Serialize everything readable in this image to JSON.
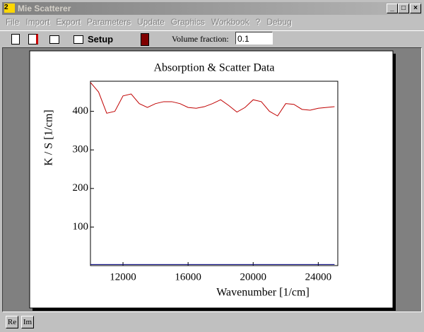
{
  "window": {
    "title": "Mie Scatterer"
  },
  "menu": [
    "File",
    "Import",
    "Export",
    "Parameters",
    "Update",
    "Graphics",
    "Workbook",
    "?",
    "Debug"
  ],
  "toolbar": {
    "setup": "Setup",
    "volume_label": "Volume fraction:",
    "volume_value": "0.1"
  },
  "status": {
    "buttons": [
      "Re",
      "Im"
    ]
  },
  "chart_data": {
    "type": "line",
    "title": "Absorption & Scatter Data",
    "x_label": "Wavenumber [1/cm]",
    "y_label": "K / S [1/cm]",
    "x": [
      10000,
      10500,
      11000,
      11500,
      12000,
      12500,
      13000,
      13500,
      14000,
      14500,
      15000,
      15500,
      16000,
      16500,
      17000,
      17500,
      18000,
      18500,
      19000,
      19500,
      20000,
      20500,
      21000,
      21500,
      22000,
      22500,
      23000,
      23500,
      24000,
      24500,
      25000
    ],
    "series": [
      {
        "color": "#c00000",
        "values": [
          475,
          450,
          395,
          400,
          440,
          445,
          420,
          410,
          420,
          425,
          425,
          420,
          410,
          408,
          412,
          420,
          430,
          415,
          398,
          410,
          430,
          425,
          400,
          388,
          420,
          418,
          405,
          403,
          408,
          410,
          412
        ]
      },
      {
        "color": "#000080",
        "values": [
          3,
          3,
          3,
          3,
          3,
          3,
          3,
          3,
          3,
          3,
          3,
          3,
          3,
          3,
          3,
          3,
          3,
          3,
          3,
          3,
          3,
          3,
          3,
          3,
          3,
          3,
          3,
          3,
          3,
          3,
          3
        ]
      }
    ],
    "xlim": [
      10000,
      25200
    ],
    "ylim": [
      0,
      478
    ],
    "xticks": [
      12000,
      16000,
      20000,
      24000
    ],
    "yticks": [
      100,
      200,
      300,
      400
    ]
  }
}
